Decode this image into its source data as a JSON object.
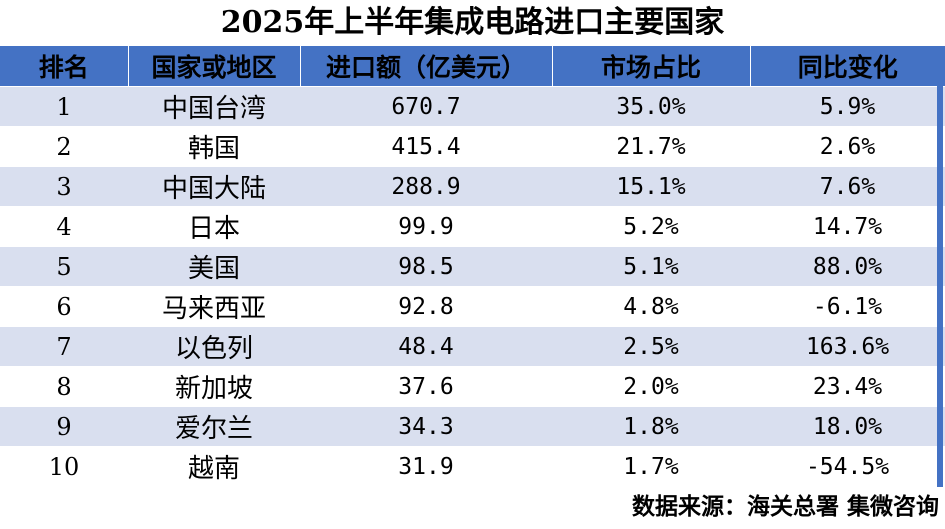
{
  "chart_data": {
    "type": "table",
    "title": "2025年上半年集成电路进口主要国家",
    "columns": [
      "排名",
      "国家或地区",
      "进口额（亿美元）",
      "市场占比",
      "同比变化"
    ],
    "rows": [
      {
        "rank": "1",
        "country": "中国台湾",
        "amount": "670.7",
        "share": "35.0%",
        "yoy": "5.9%"
      },
      {
        "rank": "2",
        "country": "韩国",
        "amount": "415.4",
        "share": "21.7%",
        "yoy": "2.6%"
      },
      {
        "rank": "3",
        "country": "中国大陆",
        "amount": "288.9",
        "share": "15.1%",
        "yoy": "7.6%"
      },
      {
        "rank": "4",
        "country": "日本",
        "amount": "99.9",
        "share": "5.2%",
        "yoy": "14.7%"
      },
      {
        "rank": "5",
        "country": "美国",
        "amount": "98.5",
        "share": "5.1%",
        "yoy": "88.0%"
      },
      {
        "rank": "6",
        "country": "马来西亚",
        "amount": "92.8",
        "share": "4.8%",
        "yoy": "-6.1%"
      },
      {
        "rank": "7",
        "country": "以色列",
        "amount": "48.4",
        "share": "2.5%",
        "yoy": "163.6%"
      },
      {
        "rank": "8",
        "country": "新加坡",
        "amount": "37.6",
        "share": "2.0%",
        "yoy": "23.4%"
      },
      {
        "rank": "9",
        "country": "爱尔兰",
        "amount": "34.3",
        "share": "1.8%",
        "yoy": "18.0%"
      },
      {
        "rank": "10",
        "country": "越南",
        "amount": "31.9",
        "share": "1.7%",
        "yoy": "-54.5%"
      }
    ],
    "source": "数据来源：海关总署 集微咨询",
    "colors": {
      "header": "#4472c4",
      "band": "#d9dfef"
    }
  }
}
